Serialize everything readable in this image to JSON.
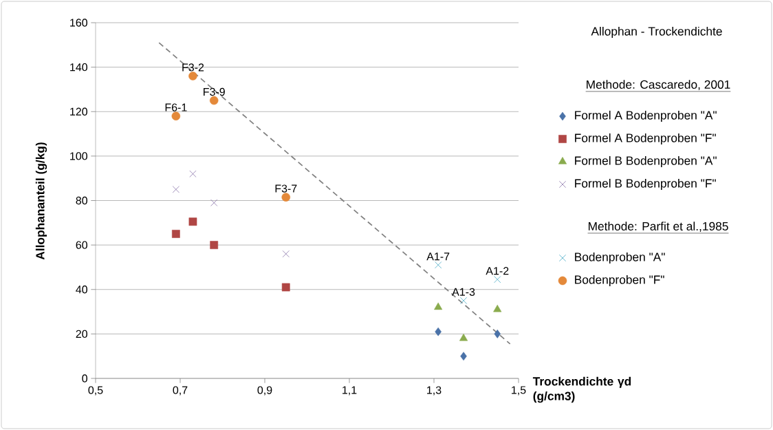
{
  "chart_data": {
    "type": "scatter",
    "title": "Allophan - Trockendichte",
    "xlabel": "Trockendichte γd (g/cm3)",
    "ylabel": "Allophananteil (g/kg)",
    "xlim": [
      0.5,
      1.5
    ],
    "xticks": [
      {
        "value": 0.5,
        "label": "0,5"
      },
      {
        "value": 0.7,
        "label": "0,7"
      },
      {
        "value": 0.9,
        "label": "0,9"
      },
      {
        "value": 1.1,
        "label": "1,1"
      },
      {
        "value": 1.3,
        "label": "1,3"
      },
      {
        "value": 1.5,
        "label": "1,5"
      }
    ],
    "ylim": [
      0,
      160
    ],
    "yticks": [
      0,
      20,
      40,
      60,
      80,
      100,
      120,
      140,
      160
    ],
    "grid": "y",
    "legend": "right",
    "series": [
      {
        "name": "Formel A   Bodenproben \"A\"",
        "color": "#4a72a8",
        "marker": "diamond",
        "x": [
          1.31,
          1.37,
          1.45
        ],
        "values": [
          21,
          10,
          20
        ]
      },
      {
        "name": "Formel A   Bodenproben \"F\"",
        "color": "#b04644",
        "marker": "square",
        "x": [
          0.69,
          0.73,
          0.78,
          0.95
        ],
        "values": [
          65,
          70.5,
          60,
          41
        ]
      },
      {
        "name": "Formel B   Bodenproben \"A\"",
        "color": "#8aab4e",
        "marker": "triangle",
        "x": [
          1.31,
          1.37,
          1.45
        ],
        "values": [
          32,
          18,
          31
        ]
      },
      {
        "name": "Formel B   Bodenproben \"F\"",
        "color": "#8b76ab",
        "marker": "cross",
        "x": [
          0.69,
          0.73,
          0.78,
          0.95
        ],
        "values": [
          85,
          92,
          79,
          56
        ]
      },
      {
        "name": "Bodenproben \"A\"",
        "color": "#4bacc6",
        "marker": "cross",
        "x": [
          1.31,
          1.37,
          1.45
        ],
        "values": [
          51,
          35,
          44.5
        ]
      },
      {
        "name": "Bodenproben \"F\"",
        "color": "#e4893a",
        "marker": "circle",
        "x": [
          0.69,
          0.73,
          0.78,
          0.95
        ],
        "values": [
          118,
          136,
          125,
          81.5
        ]
      },
      {
        "type": "line",
        "color": "#808080",
        "line_style": "dashed",
        "marker": "none",
        "x": [
          0.65,
          1.48
        ],
        "values": [
          151,
          15.5
        ]
      }
    ],
    "annotations": [
      "Methode: Cascaredo, 2001",
      "Methode: Parfit et al.,1985",
      {
        "text": "F6-1",
        "x": 0.69,
        "y": 118
      },
      {
        "text": "F3-2",
        "x": 0.73,
        "y": 136
      },
      {
        "text": "F3-9",
        "x": 0.78,
        "y": 125
      },
      {
        "text": "F3-7",
        "x": 0.95,
        "y": 81.5
      },
      {
        "text": "A1-7",
        "x": 1.31,
        "y": 51
      },
      {
        "text": "A1-3",
        "x": 1.37,
        "y": 35
      },
      {
        "text": "A1-2",
        "x": 1.45,
        "y": 44.5
      }
    ]
  }
}
